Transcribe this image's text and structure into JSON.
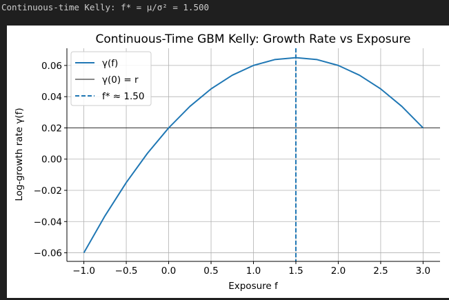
{
  "console": {
    "output_text": "Continuous-time Kelly: f* = μ/σ² = 1.500"
  },
  "colors": {
    "page_background": "#1f1f1f",
    "curve": "#1f77b4",
    "baseline": "#404040",
    "grid": "#b0b0b0"
  },
  "chart_data": {
    "type": "line",
    "title": "Continuous-Time GBM Kelly: Growth Rate vs Exposure",
    "xlabel": "Exposure f",
    "ylabel": "Log-growth rate γ(f)",
    "xlim": [
      -1.2,
      3.2
    ],
    "ylim": [
      -0.0655,
      0.071
    ],
    "xticks": [
      -1.0,
      -0.5,
      0.0,
      0.5,
      1.0,
      1.5,
      2.0,
      2.5,
      3.0
    ],
    "xtick_labels": [
      "−1.0",
      "−0.5",
      "0.0",
      "0.5",
      "1.0",
      "1.5",
      "2.0",
      "2.5",
      "3.0"
    ],
    "yticks": [
      -0.06,
      -0.04,
      -0.02,
      0.0,
      0.02,
      0.04,
      0.06
    ],
    "ytick_labels": [
      "−0.06",
      "−0.04",
      "−0.02",
      "0.00",
      "0.02",
      "0.04",
      "0.06"
    ],
    "grid": true,
    "legend_position": "top-left",
    "series": [
      {
        "name": "γ(f)",
        "style": "solid",
        "color": "#1f77b4",
        "x": [
          -1.0,
          -0.75,
          -0.5,
          -0.25,
          0.0,
          0.25,
          0.5,
          0.75,
          1.0,
          1.25,
          1.5,
          1.75,
          2.0,
          2.25,
          2.5,
          2.75,
          3.0
        ],
        "y": [
          -0.06,
          -0.03625,
          -0.015,
          0.00375,
          0.02,
          0.03375,
          0.045,
          0.05375,
          0.06,
          0.06375,
          0.065,
          0.06375,
          0.06,
          0.05375,
          0.045,
          0.03375,
          0.02
        ]
      },
      {
        "name": "γ(0) = r",
        "style": "solid",
        "color": "#404040",
        "orientation": "horizontal",
        "y": 0.02
      },
      {
        "name": "f* ≈ 1.50",
        "style": "dashed",
        "color": "#1f77b4",
        "orientation": "vertical",
        "x": 1.5
      }
    ]
  }
}
